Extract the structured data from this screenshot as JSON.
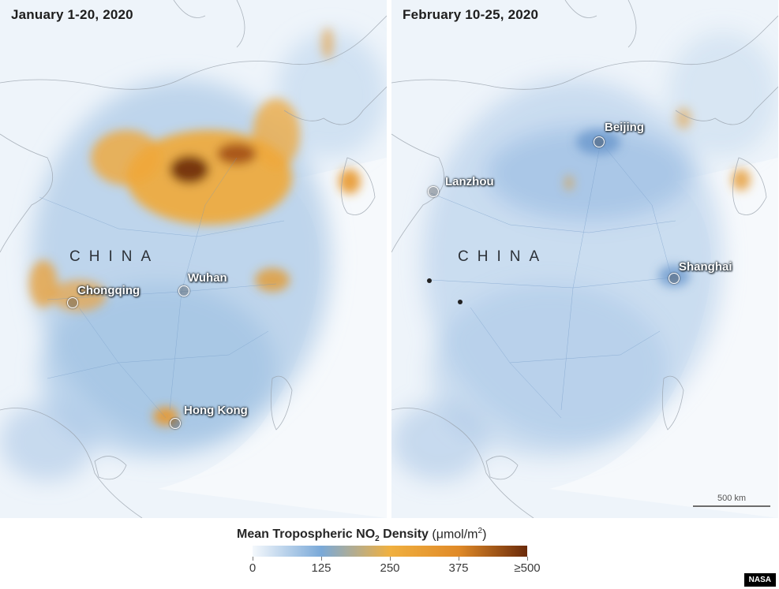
{
  "panels": [
    {
      "title": "January 1-20, 2020",
      "country_label": "CHINA",
      "cities": [
        "Chongqing",
        "Wuhan",
        "Hong Kong"
      ]
    },
    {
      "title": "February 10-25, 2020",
      "country_label": "CHINA",
      "cities": [
        "Beijing",
        "Lanzhou",
        "Shanghai"
      ]
    }
  ],
  "scalebar": {
    "label": "500 km"
  },
  "legend": {
    "title_prefix": "Mean Tropospheric NO",
    "title_subscript": "2",
    "title_suffix": " Density",
    "unit_prefix": "(μmol/m",
    "unit_superscript": "2",
    "unit_suffix": ")",
    "ticks": [
      "0",
      "125",
      "250",
      "375",
      "≥500"
    ],
    "colors": [
      "#f4f8fc",
      "#7aa9d8",
      "#f0b040",
      "#e08a28",
      "#6a2a0a"
    ]
  },
  "credit": "NASA"
}
